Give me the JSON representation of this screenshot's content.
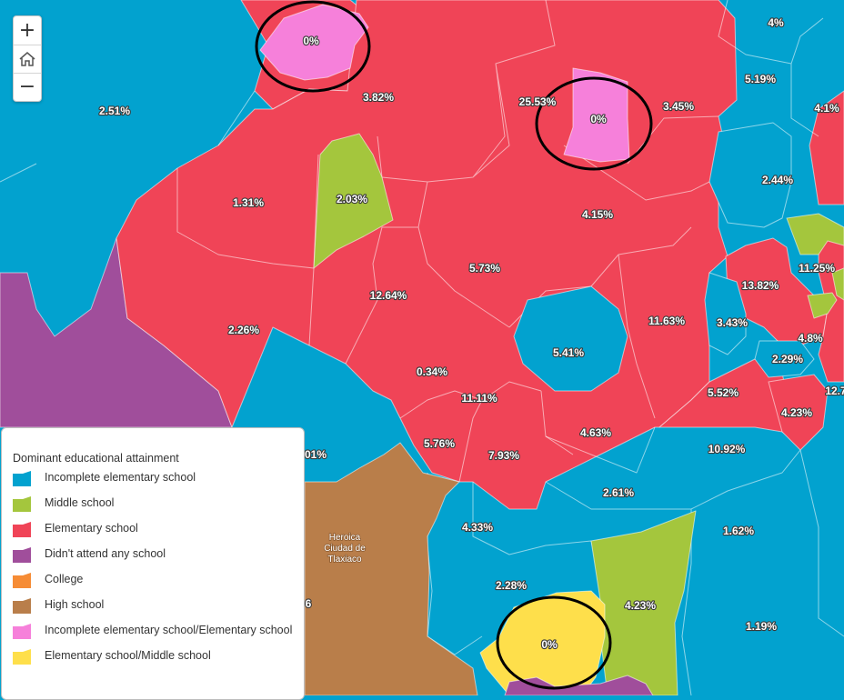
{
  "map": {
    "colors": {
      "incomplete_elementary": "#02a2cf",
      "middle_school": "#a4c63d",
      "elementary": "#f04457",
      "no_school": "#a04e9b",
      "college": "#f68c35",
      "high_school": "#b97e4a",
      "incomplete_elem_elementary": "#f680da",
      "elem_middle": "#fedf4b"
    },
    "labels": {
      "l1": "4%",
      "l2": "5.19%",
      "l3": "0%",
      "l4": "2.51%",
      "l5": "3.82%",
      "l6": "25.53%",
      "l7": "0%",
      "l8": "3.45%",
      "l9": "4.1%",
      "l10": "2.44%",
      "l11": "1.31%",
      "l12": "2.03%",
      "l13": "4.15%",
      "l14": "11.25%",
      "l15": "5.73%",
      "l16": "13.82%",
      "l17": "12.64%",
      "l18": "2.26%",
      "l19": "11.63%",
      "l20": "3.43%",
      "l21": "4.8%",
      "l22": "5.41%",
      "l23": "0.34%",
      "l24": "2.29%",
      "l25": "11.11%",
      "l26": "5.52%",
      "l27": "12.7",
      "l28": "4.23%",
      "l29": "4.63%",
      "l30": "5.76%",
      "l31": "7.93%",
      "l32": "10.92%",
      "l33": "01%",
      "l34": "2.61%",
      "l35": "4.33%",
      "l36": "1.62%",
      "l37": "2.28%",
      "l38": "4.23%",
      "l39": "0%",
      "l40": "1.19%",
      "l41": "6"
    },
    "place_name": [
      "Heroica",
      "Ciudad de",
      "Tlaxiaco"
    ]
  },
  "zoom": {
    "in_label": "+",
    "out_label": "−"
  },
  "legend": {
    "title": "Dominant educational attainment",
    "items": [
      {
        "label": "Incomplete elementary school",
        "color": "#02a2cf"
      },
      {
        "label": "Middle school",
        "color": "#a4c63d"
      },
      {
        "label": "Elementary school",
        "color": "#f04457"
      },
      {
        "label": "Didn't attend any school",
        "color": "#a04e9b"
      },
      {
        "label": "College",
        "color": "#f68c35"
      },
      {
        "label": "High school",
        "color": "#b97e4a"
      },
      {
        "label": "Incomplete elementary school/Elementary school",
        "color": "#f680da"
      },
      {
        "label": "Elementary school/Middle school",
        "color": "#fedf4b"
      }
    ]
  }
}
